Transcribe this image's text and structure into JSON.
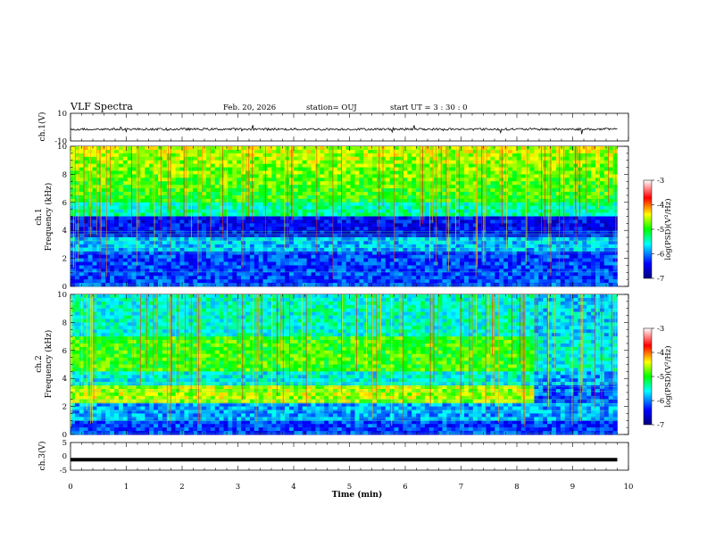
{
  "header": {
    "title": "VLF Spectra",
    "date": "Feb. 20, 2026",
    "station": "station= OUJ",
    "start": "start  UT =   3  : 30 : 0"
  },
  "chart_data": [
    {
      "id": "ch1-voltage",
      "type": "line",
      "ylabel": "ch.1(V)",
      "ylim": [
        -10,
        10
      ],
      "yticks": [
        "10",
        "-10"
      ],
      "xlim": [
        0,
        10
      ],
      "description_level": -1.5
    },
    {
      "id": "ch1-spectrogram",
      "type": "heatmap",
      "ylabel_line1": "ch.1",
      "ylabel_line2": "Frequency  (kHz)",
      "ylim": [
        0,
        10
      ],
      "yticks": [
        "0",
        "2",
        "4",
        "6",
        "8",
        "10"
      ],
      "xlim": [
        0,
        10
      ],
      "data_end": 9.8,
      "colorbar": {
        "label": "log(PSD)(V²/Hz)",
        "range": [
          -7,
          -3
        ],
        "ticks": [
          "-3",
          "-4",
          "-5",
          "-6",
          "-7"
        ]
      }
    },
    {
      "id": "ch2-spectrogram",
      "type": "heatmap",
      "ylabel_line1": "ch.2",
      "ylabel_line2": "Frequency  (kHz)",
      "ylim": [
        0,
        10
      ],
      "yticks": [
        "0",
        "2",
        "4",
        "6",
        "8",
        "10"
      ],
      "xlim": [
        0,
        10
      ],
      "data_end": 9.8,
      "colorbar": {
        "label": "log(PSD)(V²/Hz)",
        "range": [
          -7,
          -3
        ],
        "ticks": [
          "-3",
          "-4",
          "-5",
          "-6",
          "-7"
        ]
      }
    },
    {
      "id": "ch3-voltage",
      "type": "line",
      "ylabel": "ch.3(V)",
      "ylim": [
        -5,
        5
      ],
      "yticks": [
        "5",
        "0",
        "-5"
      ],
      "xlim": [
        0,
        10
      ],
      "xlabel": "Time  (min)",
      "xticks": [
        "0",
        "1",
        "2",
        "3",
        "4",
        "5",
        "6",
        "7",
        "8",
        "9",
        "10"
      ],
      "level": -1.2
    }
  ]
}
